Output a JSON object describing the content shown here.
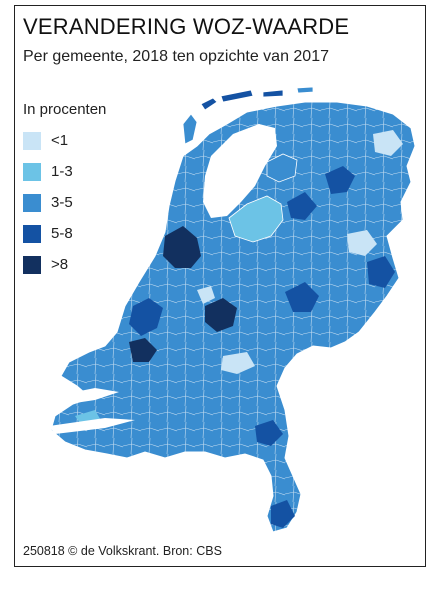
{
  "title": "VERANDERING WOZ-WAARDE",
  "subtitle": "Per gemeente, 2018 ten opzichte van  2017",
  "legend": {
    "title": "In procenten",
    "items": [
      {
        "label": "<1",
        "color": "#c9e4f6"
      },
      {
        "label": "1-3",
        "color": "#6cc3e6"
      },
      {
        "label": "3-5",
        "color": "#3a8dd0"
      },
      {
        "label": "5-8",
        "color": "#1452a3"
      },
      {
        "label": ">8",
        "color": "#12305f"
      }
    ]
  },
  "footer": "250818 © de Volkskrant. Bron: CBS"
}
